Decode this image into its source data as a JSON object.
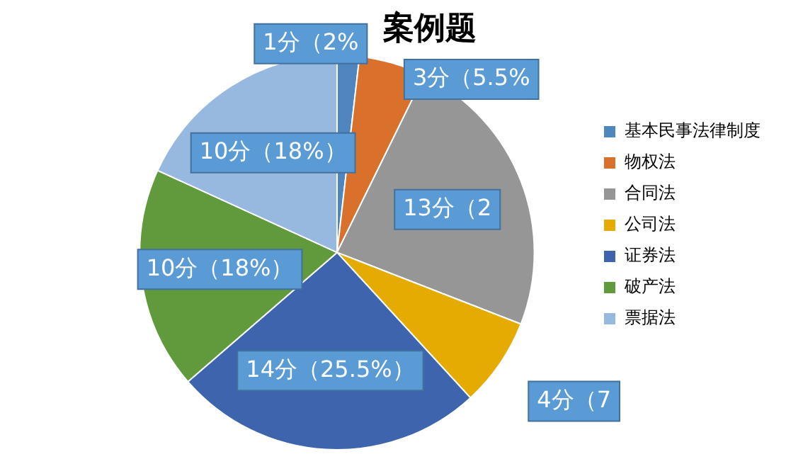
{
  "chart_data": {
    "type": "pie",
    "title": "案例题",
    "categories": [
      "基本民事法律制度",
      "物权法",
      "合同法",
      "公司法",
      "证券法",
      "破产法",
      "票据法"
    ],
    "values": [
      1,
      3,
      13,
      4,
      14,
      10,
      10
    ],
    "colors": [
      "#4f86c0",
      "#d9702b",
      "#969696",
      "#e6ab00",
      "#3d64ad",
      "#609a3c",
      "#98b9df"
    ],
    "value_labels": [
      "1分（2%",
      "3分（5.5%",
      "13分（2",
      "4分（7",
      "14分（25.5%）",
      "10分（18%）",
      "10分（18%）"
    ],
    "legend": "right"
  }
}
